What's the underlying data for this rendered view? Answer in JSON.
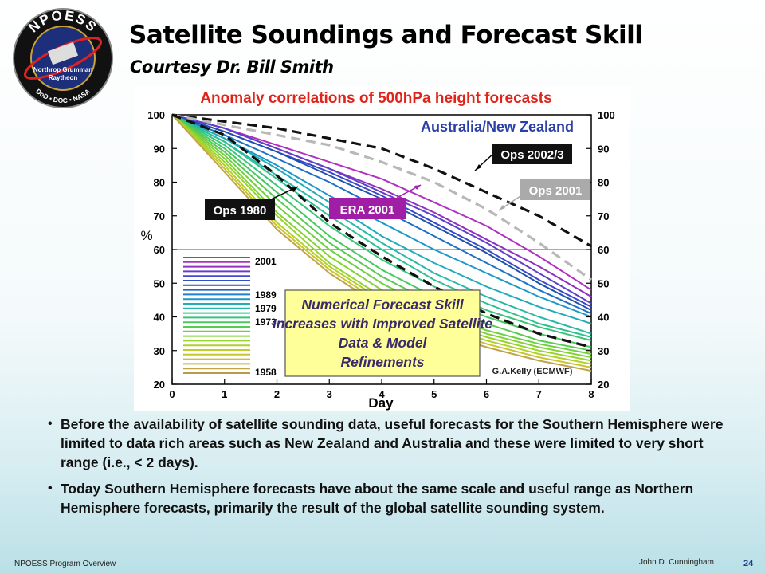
{
  "slide": {
    "title": "Satellite Soundings and Forecast Skill",
    "subtitle": "Courtesy Dr. Bill Smith",
    "logo": {
      "top_text": "NPOESS",
      "line1": "Northrop Grumman",
      "line2": "Raytheon",
      "bottom_text": "DoD • DOC • NASA"
    },
    "bullets": [
      "Before the availability of satellite sounding data, useful forecasts for the Southern Hemisphere were limited to data rich areas such as New Zealand and Australia and these were limited to very short range (i.e., < 2 days).",
      "Today Southern Hemisphere forecasts have about the same scale and useful range as Northern Hemisphere forecasts, primarily the result of the global satellite sounding system."
    ],
    "footer": {
      "left": "NPOESS Program Overview",
      "author": "John D. Cunningham",
      "page": "24"
    }
  },
  "chart_data": {
    "type": "line",
    "title": "Anomaly correlations of 500hPa height forecasts",
    "region": "Australia/New Zealand",
    "xlabel": "Day",
    "ylabel": "%",
    "xlim": [
      0,
      8
    ],
    "ylim": [
      20,
      100
    ],
    "xticks": [
      0,
      1,
      2,
      3,
      4,
      5,
      6,
      7,
      8
    ],
    "yticks": [
      20,
      30,
      40,
      50,
      60,
      70,
      80,
      90,
      100
    ],
    "reference_line": 60,
    "credit": "G.A.Kelly (ECMWF)",
    "annotation": "Numerical Forecast Skill Increases with Improved Satellite Data & Model Refinements",
    "legend": {
      "placement": "bottom-left",
      "year_labels": [
        {
          "label": "2001",
          "at": 56.5
        },
        {
          "label": "1989",
          "at": 46.5
        },
        {
          "label": "1979",
          "at": 42.5
        },
        {
          "label": "1973",
          "at": 38.5
        },
        {
          "label": "1958",
          "at": 23.5
        }
      ],
      "swatch_colors": [
        "#b030c0",
        "#b030c0",
        "#9030c0",
        "#6a3ac8",
        "#4a48cc",
        "#3050c8",
        "#2050b0",
        "#1f66c0",
        "#1e80cc",
        "#1c98c8",
        "#20acb8",
        "#2ab8a8",
        "#30c090",
        "#38c47a",
        "#48c860",
        "#58cc50",
        "#6ed040",
        "#84d236",
        "#98d430",
        "#b0d228",
        "#c0cc28",
        "#c8c430",
        "#ccbc3a",
        "#c8b040",
        "#c0a448",
        "#b89a48"
      ]
    },
    "callouts": [
      {
        "label": "Ops 2002/3",
        "style": "black"
      },
      {
        "label": "Ops 2001",
        "style": "gray"
      },
      {
        "label": "ERA 2001",
        "style": "purple"
      },
      {
        "label": "Ops 1980",
        "style": "black"
      }
    ],
    "series": [
      {
        "label": "Ops 2002/3",
        "color": "#111111",
        "dash": true,
        "x": [
          0,
          1,
          2,
          3,
          4,
          5,
          6,
          7,
          8
        ],
        "values": [
          100,
          98,
          96,
          93,
          90,
          84,
          77,
          70,
          61
        ]
      },
      {
        "label": "Ops 2001",
        "color": "#b8b8b8",
        "dash": true,
        "x": [
          0,
          1,
          2,
          3,
          4,
          5,
          6,
          7,
          8
        ],
        "values": [
          100,
          97,
          94,
          91,
          86,
          80,
          72,
          62,
          51
        ]
      },
      {
        "label": "Ops 1980",
        "color": "#111111",
        "dash": true,
        "x": [
          0,
          1,
          2,
          3,
          4,
          5,
          6,
          7,
          8
        ],
        "values": [
          100,
          94,
          82,
          68,
          58,
          49,
          41,
          35,
          31
        ]
      },
      {
        "label": "",
        "color": "#b030c0",
        "dash": false,
        "x": [
          0,
          1,
          2,
          3,
          4,
          5,
          6,
          7,
          8
        ],
        "values": [
          100,
          96,
          91,
          86,
          81,
          74,
          67,
          58,
          48
        ]
      },
      {
        "label": "",
        "color": "#9030c0",
        "dash": false,
        "x": [
          0,
          1,
          2,
          3,
          4,
          5,
          6,
          7,
          8
        ],
        "values": [
          100,
          96,
          90,
          84,
          78,
          71,
          63,
          55,
          46
        ]
      },
      {
        "label": "",
        "color": "#6040c8",
        "dash": false,
        "x": [
          0,
          1,
          2,
          3,
          4,
          5,
          6,
          7,
          8
        ],
        "values": [
          100,
          96,
          90,
          84,
          77,
          70,
          62,
          53,
          44
        ]
      },
      {
        "label": "",
        "color": "#3a48c8",
        "dash": false,
        "x": [
          0,
          1,
          2,
          3,
          4,
          5,
          6,
          7,
          8
        ],
        "values": [
          100,
          95,
          89,
          83,
          76,
          68,
          60,
          51,
          43
        ]
      },
      {
        "label": "",
        "color": "#2050b0",
        "dash": false,
        "x": [
          0,
          1,
          2,
          3,
          4,
          5,
          6,
          7,
          8
        ],
        "values": [
          100,
          95,
          89,
          82,
          75,
          67,
          59,
          50,
          42
        ]
      },
      {
        "label": "",
        "color": "#1f70c4",
        "dash": false,
        "x": [
          0,
          1,
          2,
          3,
          4,
          5,
          6,
          7,
          8
        ],
        "values": [
          100,
          94,
          87,
          80,
          72,
          64,
          56,
          48,
          41
        ]
      },
      {
        "label": "",
        "color": "#1c98c8",
        "dash": false,
        "x": [
          0,
          1,
          2,
          3,
          4,
          5,
          6,
          7,
          8
        ],
        "values": [
          100,
          93,
          85,
          76,
          68,
          60,
          53,
          46,
          40
        ]
      },
      {
        "label": "",
        "color": "#20acb8",
        "dash": false,
        "x": [
          0,
          1,
          2,
          3,
          4,
          5,
          6,
          7,
          8
        ],
        "values": [
          100,
          93,
          84,
          74,
          64,
          56,
          49,
          43,
          38
        ]
      },
      {
        "label": "",
        "color": "#2ab8a8",
        "dash": false,
        "x": [
          0,
          1,
          2,
          3,
          4,
          5,
          6,
          7,
          8
        ],
        "values": [
          100,
          92,
          82,
          72,
          62,
          53,
          46,
          40,
          35
        ]
      },
      {
        "label": "",
        "color": "#30c090",
        "dash": false,
        "x": [
          0,
          1,
          2,
          3,
          4,
          5,
          6,
          7,
          8
        ],
        "values": [
          100,
          92,
          81,
          70,
          60,
          51,
          44,
          38,
          34
        ]
      },
      {
        "label": "",
        "color": "#38c47a",
        "dash": false,
        "x": [
          0,
          1,
          2,
          3,
          4,
          5,
          6,
          7,
          8
        ],
        "values": [
          100,
          91,
          79,
          67,
          57,
          49,
          42,
          37,
          33
        ]
      },
      {
        "label": "",
        "color": "#48c860",
        "dash": false,
        "x": [
          0,
          1,
          2,
          3,
          4,
          5,
          6,
          7,
          8
        ],
        "values": [
          100,
          90,
          77,
          64,
          54,
          46,
          40,
          35,
          31
        ]
      },
      {
        "label": "",
        "color": "#58cc50",
        "dash": false,
        "x": [
          0,
          1,
          2,
          3,
          4,
          5,
          6,
          7,
          8
        ],
        "values": [
          100,
          89,
          75,
          62,
          52,
          44,
          38,
          33,
          30
        ]
      },
      {
        "label": "",
        "color": "#6ed040",
        "dash": false,
        "x": [
          0,
          1,
          2,
          3,
          4,
          5,
          6,
          7,
          8
        ],
        "values": [
          100,
          88,
          73,
          60,
          50,
          42,
          36,
          32,
          29
        ]
      },
      {
        "label": "",
        "color": "#84d236",
        "dash": false,
        "x": [
          0,
          1,
          2,
          3,
          4,
          5,
          6,
          7,
          8
        ],
        "values": [
          100,
          87,
          71,
          58,
          48,
          40,
          35,
          31,
          28
        ]
      },
      {
        "label": "",
        "color": "#98d430",
        "dash": false,
        "x": [
          0,
          1,
          2,
          3,
          4,
          5,
          6,
          7,
          8
        ],
        "values": [
          100,
          86,
          70,
          56,
          46,
          39,
          34,
          30,
          27
        ]
      },
      {
        "label": "",
        "color": "#b0d228",
        "dash": false,
        "x": [
          0,
          1,
          2,
          3,
          4,
          5,
          6,
          7,
          8
        ],
        "values": [
          100,
          85,
          68,
          55,
          45,
          38,
          33,
          29,
          26
        ]
      },
      {
        "label": "",
        "color": "#c8c430",
        "dash": false,
        "x": [
          0,
          1,
          2,
          3,
          4,
          5,
          6,
          7,
          8
        ],
        "values": [
          100,
          84,
          67,
          54,
          44,
          37,
          32,
          28,
          25
        ]
      },
      {
        "label": "",
        "color": "#c0a448",
        "dash": false,
        "x": [
          0,
          1,
          2,
          3,
          4,
          5,
          6,
          7,
          8
        ],
        "values": [
          100,
          83,
          66,
          53,
          43,
          36,
          31,
          27,
          24
        ]
      }
    ]
  }
}
